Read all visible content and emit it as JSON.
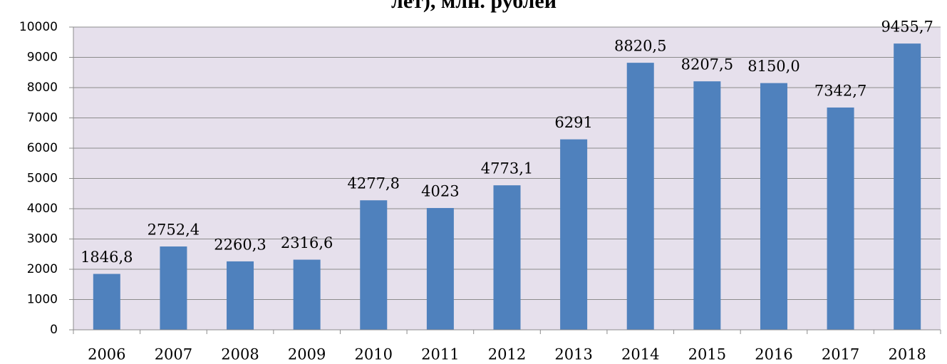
{
  "chart_data": {
    "type": "bar",
    "title": "лет), млн. рублей",
    "categories": [
      "2006",
      "2007",
      "2008",
      "2009",
      "2010",
      "2011",
      "2012",
      "2013",
      "2014",
      "2015",
      "2016",
      "2017",
      "2018"
    ],
    "values": [
      1846.8,
      2752.4,
      2260.3,
      2316.6,
      4277.8,
      4023,
      4773.1,
      6291,
      8820.5,
      8207.5,
      8150.0,
      7342.7,
      9455.7
    ],
    "value_labels": [
      "1846,8",
      "2752,4",
      "2260,3",
      "2316,6",
      "4277,8",
      "4023",
      "4773,1",
      "6291",
      "8820,5",
      "8207,5",
      "8150,0",
      "7342,7",
      "9455,7"
    ],
    "color": "#4f81bd",
    "ylim": [
      0,
      10000
    ],
    "yticks": [
      0,
      1000,
      2000,
      3000,
      4000,
      5000,
      6000,
      7000,
      8000,
      9000,
      10000
    ],
    "grid": true
  }
}
